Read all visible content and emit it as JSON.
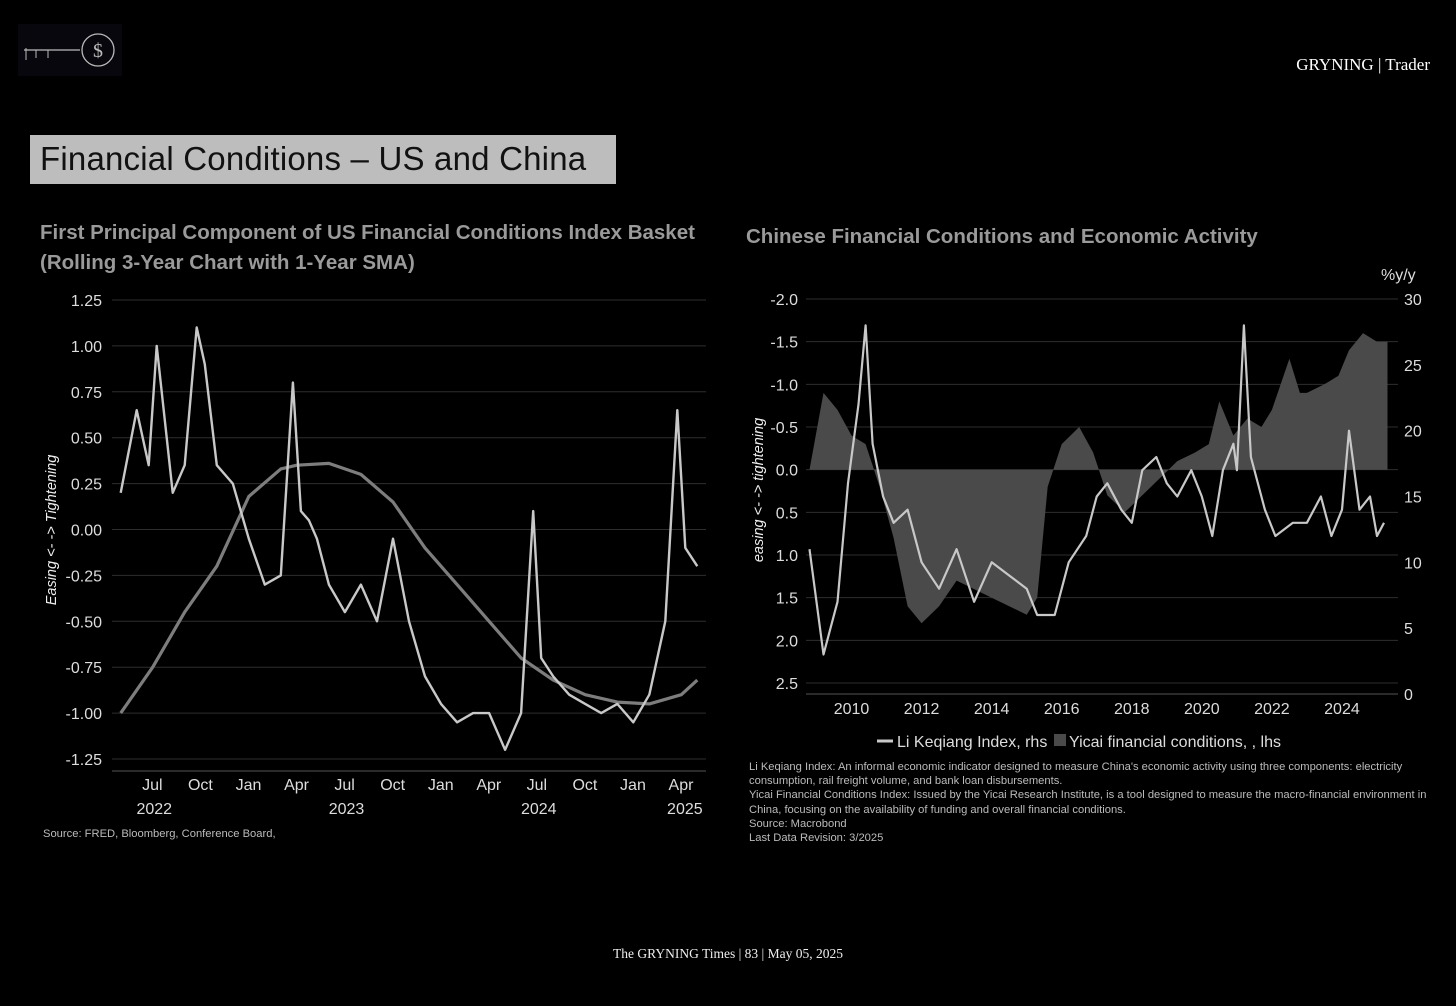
{
  "header": {
    "brand": "GRYNING | Trader",
    "logo_icon": "dollar-circle-icon",
    "page_title": "Financial Conditions – US and China"
  },
  "colors": {
    "background": "#000000",
    "title_box": "#bdbdbd",
    "index_line": "#c8c8c8",
    "sma_line": "#7d7d7d",
    "area_fill": "#4a4a4a",
    "grid": "#2e2e2e"
  },
  "footer": "The GRYNING Times | 83 | May 05, 2025",
  "us_source": "Source: FRED, Bloomberg, Conference Board,",
  "cn_notes": [
    "Li Keqiang Index: An informal economic indicator designed to measure China's economic activity using three components: electricity consumption, rail freight volume, and bank loan disbursements.",
    "Yicai Financial Conditions Index: Issued by the Yicai Research Institute, is a tool designed to measure the macro-financial environment in China, focusing on the availability of funding and overall financial conditions.",
    "Source: Macrobond",
    "Last Data Revision: 3/2025"
  ],
  "chart_data": [
    {
      "type": "line",
      "title": "First Principal Component of US Financial Conditions Index Basket (Rolling 3-Year Chart with 1-Year SMA)",
      "ylabel": "Easing <- -> Tightening",
      "ylim": [
        -1.25,
        1.25
      ],
      "yticks": [
        "1.25",
        "1.00",
        "0.75",
        "0.50",
        "0.25",
        "0.00",
        "-0.25",
        "-0.50",
        "-0.75",
        "-1.00",
        "-1.25"
      ],
      "xticks": [
        "Jul",
        "Oct",
        "Jan",
        "Apr",
        "Jul",
        "Oct",
        "Jan",
        "Apr",
        "Jul",
        "Oct",
        "Jan",
        "Apr"
      ],
      "xyears": [
        "2022",
        "2023",
        "2024",
        "2025"
      ],
      "grid": true,
      "legend": "none",
      "series": [
        {
          "x": [
            "2022-05",
            "2022-06",
            "2022-07",
            "2022-07",
            "2022-08",
            "2022-08",
            "2022-09",
            "2022-10",
            "2022-10",
            "2022-11",
            "2022-12",
            "2023-01",
            "2023-02",
            "2023-03",
            "2023-04",
            "2023-04",
            "2023-05",
            "2023-05",
            "2023-06",
            "2023-07",
            "2023-08",
            "2023-09",
            "2023-10",
            "2023-11",
            "2023-12",
            "2024-01",
            "2024-02",
            "2024-03",
            "2024-04",
            "2024-05",
            "2024-06",
            "2024-07",
            "2024-07",
            "2024-08",
            "2024-09",
            "2024-10",
            "2024-11",
            "2024-12",
            "2025-01",
            "2025-02",
            "2025-03",
            "2025-04",
            "2025-04",
            "2025-05"
          ],
          "values": [
            0.2,
            0.65,
            0.35,
            1.0,
            0.6,
            0.2,
            0.35,
            1.1,
            0.9,
            0.35,
            0.25,
            -0.05,
            -0.3,
            -0.25,
            0.8,
            0.1,
            0.05,
            -0.05,
            -0.3,
            -0.45,
            -0.3,
            -0.5,
            -0.05,
            -0.5,
            -0.8,
            -0.95,
            -1.05,
            -1.0,
            -1.0,
            -1.2,
            -1.0,
            0.1,
            -0.7,
            -0.8,
            -0.9,
            -0.95,
            -1.0,
            -0.95,
            -1.05,
            -0.9,
            -0.5,
            0.65,
            -0.1,
            -0.2
          ]
        },
        {
          "x": [
            "2022-05",
            "2022-07",
            "2022-09",
            "2022-11",
            "2023-01",
            "2023-03",
            "2023-04",
            "2023-06",
            "2023-08",
            "2023-10",
            "2023-12",
            "2024-02",
            "2024-04",
            "2024-06",
            "2024-08",
            "2024-10",
            "2024-12",
            "2025-02",
            "2025-04",
            "2025-05"
          ],
          "values": [
            -1.0,
            -0.75,
            -0.45,
            -0.2,
            0.18,
            0.33,
            0.35,
            0.36,
            0.3,
            0.15,
            -0.1,
            -0.3,
            -0.5,
            -0.7,
            -0.82,
            -0.9,
            -0.94,
            -0.95,
            -0.9,
            -0.82
          ]
        }
      ]
    },
    {
      "type": "area",
      "title": "Chinese Financial Conditions and Economic Activity",
      "ylabel_left": "easing <- -> tightening",
      "ylabel_right": "%y/y",
      "ylim_left": [
        -2.0,
        2.5
      ],
      "ylim_right": [
        0,
        30
      ],
      "left_inverted": true,
      "yticks_left": [
        "-2.0",
        "-1.5",
        "-1.0",
        "-0.5",
        "0.0",
        "0.5",
        "1.0",
        "1.5",
        "2.0",
        "2.5"
      ],
      "yticks_right": [
        "30",
        "25",
        "20",
        "15",
        "10",
        "5",
        "0"
      ],
      "xticks": [
        "2010",
        "2012",
        "2014",
        "2016",
        "2018",
        "2020",
        "2022",
        "2024"
      ],
      "grid": true,
      "legend": "bottom",
      "series": [
        {
          "name": "Li Keqiang Index, rhs",
          "axis": "right",
          "x": [
            2008.8,
            2009.2,
            2009.6,
            2009.9,
            2010.2,
            2010.4,
            2010.6,
            2010.9,
            2011.2,
            2011.6,
            2012.0,
            2012.5,
            2013.0,
            2013.5,
            2014.0,
            2014.5,
            2015.0,
            2015.3,
            2015.8,
            2016.2,
            2016.7,
            2017.0,
            2017.3,
            2017.7,
            2018.0,
            2018.3,
            2018.7,
            2019.0,
            2019.3,
            2019.7,
            2020.0,
            2020.3,
            2020.6,
            2020.9,
            2021.0,
            2021.2,
            2021.4,
            2021.8,
            2022.1,
            2022.6,
            2023.0,
            2023.4,
            2023.7,
            2024.0,
            2024.2,
            2024.5,
            2024.8,
            2025.0,
            2025.2
          ],
          "values": [
            11,
            3,
            7,
            16,
            22,
            28,
            19,
            15,
            13,
            14,
            10,
            8,
            11,
            7,
            10,
            9,
            8,
            6,
            6,
            10,
            12,
            15,
            16,
            14,
            13,
            17,
            18,
            16,
            15,
            17,
            15,
            12,
            17,
            19,
            17,
            28,
            18,
            14,
            12,
            13,
            13,
            15,
            12,
            14,
            20,
            14,
            15,
            12,
            13
          ]
        },
        {
          "name": "Yicai financial conditions, , lhs",
          "axis": "left",
          "x": [
            2008.8,
            2009.2,
            2009.6,
            2010.0,
            2010.4,
            2010.8,
            2011.2,
            2011.6,
            2012.0,
            2012.5,
            2013.0,
            2013.5,
            2014.0,
            2014.5,
            2015.0,
            2015.3,
            2015.6,
            2016.0,
            2016.5,
            2016.9,
            2017.3,
            2017.8,
            2018.3,
            2018.8,
            2019.3,
            2019.8,
            2020.2,
            2020.5,
            2020.9,
            2021.3,
            2021.7,
            2022.0,
            2022.5,
            2022.8,
            2023.0,
            2023.5,
            2023.9,
            2024.2,
            2024.6,
            2025.0,
            2025.3
          ],
          "values": [
            0.0,
            -0.9,
            -0.7,
            -0.4,
            -0.3,
            0.2,
            0.8,
            1.6,
            1.8,
            1.6,
            1.3,
            1.4,
            1.5,
            1.6,
            1.7,
            1.5,
            0.2,
            -0.3,
            -0.5,
            -0.2,
            0.3,
            0.5,
            0.3,
            0.1,
            -0.1,
            -0.2,
            -0.3,
            -0.8,
            -0.4,
            -0.6,
            -0.5,
            -0.7,
            -1.3,
            -0.9,
            -0.9,
            -1.0,
            -1.1,
            -1.4,
            -1.6,
            -1.5,
            -1.5
          ]
        }
      ]
    }
  ]
}
